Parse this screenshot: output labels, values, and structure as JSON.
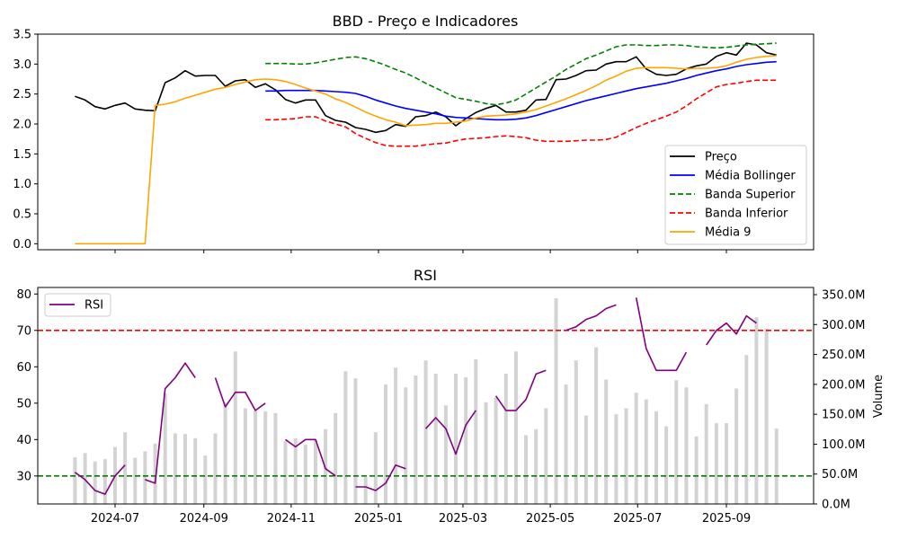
{
  "chart_data": [
    {
      "type": "line",
      "title": "BBD - Preço e Indicadores",
      "xlabel": "",
      "ylabel": "",
      "ylim": [
        -0.1,
        3.5
      ],
      "yticks": [
        "0.0",
        "0.5",
        "1.0",
        "1.5",
        "2.0",
        "2.5",
        "3.0",
        "3.5"
      ],
      "ytick_values": [
        0,
        0.5,
        1.0,
        1.5,
        2.0,
        2.5,
        3.0,
        3.5
      ],
      "x_start_date": "2024-06-03",
      "x_step_days": 7,
      "legend_position": "lower-right",
      "series": [
        {
          "name": "Preço",
          "color": "#000000",
          "style": "solid",
          "values": [
            2.46,
            2.4,
            2.29,
            2.25,
            2.31,
            2.35,
            2.25,
            2.23,
            2.22,
            2.69,
            2.77,
            2.89,
            2.8,
            2.81,
            2.81,
            2.63,
            2.72,
            2.74,
            2.61,
            2.67,
            2.57,
            2.41,
            2.35,
            2.4,
            2.4,
            2.14,
            2.06,
            2.03,
            1.94,
            1.91,
            1.86,
            1.89,
            1.99,
            1.96,
            2.12,
            2.14,
            2.2,
            2.12,
            1.97,
            2.09,
            2.19,
            2.26,
            2.31,
            2.2,
            2.2,
            2.23,
            2.4,
            2.41,
            2.74,
            2.75,
            2.81,
            2.89,
            2.9,
            3.0,
            3.04,
            3.04,
            3.12,
            2.92,
            2.83,
            2.81,
            2.83,
            2.92,
            2.97,
            3.0,
            3.13,
            3.19,
            3.15,
            3.35,
            3.32,
            3.19,
            3.15
          ]
        },
        {
          "name": "Média Bollinger",
          "color": "#0000ff",
          "style": "solid",
          "values": [
            null,
            null,
            null,
            null,
            null,
            null,
            null,
            null,
            null,
            null,
            null,
            null,
            null,
            null,
            null,
            null,
            null,
            null,
            null,
            2.55,
            2.55,
            2.56,
            2.56,
            2.56,
            2.56,
            2.55,
            2.54,
            2.53,
            2.51,
            2.46,
            2.4,
            2.35,
            2.3,
            2.26,
            2.23,
            2.2,
            2.17,
            2.13,
            2.11,
            2.1,
            2.09,
            2.08,
            2.07,
            2.07,
            2.08,
            2.1,
            2.14,
            2.19,
            2.24,
            2.29,
            2.34,
            2.39,
            2.43,
            2.47,
            2.51,
            2.55,
            2.59,
            2.62,
            2.65,
            2.68,
            2.72,
            2.76,
            2.81,
            2.85,
            2.89,
            2.92,
            2.96,
            2.99,
            3.01,
            3.03,
            3.04
          ]
        },
        {
          "name": "Banda Superior",
          "color": "#008000",
          "style": "dashed",
          "values": [
            null,
            null,
            null,
            null,
            null,
            null,
            null,
            null,
            null,
            null,
            null,
            null,
            null,
            null,
            null,
            null,
            null,
            null,
            null,
            3.01,
            3.01,
            3.01,
            3.0,
            3.0,
            3.02,
            3.05,
            3.08,
            3.11,
            3.12,
            3.09,
            3.04,
            2.98,
            2.91,
            2.85,
            2.77,
            2.68,
            2.6,
            2.52,
            2.44,
            2.41,
            2.38,
            2.34,
            2.32,
            2.35,
            2.4,
            2.5,
            2.6,
            2.7,
            2.8,
            2.91,
            3.0,
            3.09,
            3.15,
            3.22,
            3.29,
            3.32,
            3.32,
            3.31,
            3.31,
            3.32,
            3.32,
            3.31,
            3.29,
            3.28,
            3.27,
            3.28,
            3.3,
            3.32,
            3.33,
            3.34,
            3.35
          ]
        },
        {
          "name": "Banda Inferior",
          "color": "#ff0000",
          "style": "dashed",
          "values": [
            null,
            null,
            null,
            null,
            null,
            null,
            null,
            null,
            null,
            null,
            null,
            null,
            null,
            null,
            null,
            null,
            null,
            null,
            null,
            2.07,
            2.07,
            2.08,
            2.09,
            2.12,
            2.12,
            2.05,
            2.0,
            1.95,
            1.84,
            1.76,
            1.69,
            1.64,
            1.63,
            1.63,
            1.63,
            1.65,
            1.67,
            1.68,
            1.72,
            1.75,
            1.76,
            1.77,
            1.79,
            1.8,
            1.79,
            1.77,
            1.73,
            1.71,
            1.71,
            1.71,
            1.72,
            1.73,
            1.73,
            1.74,
            1.78,
            1.86,
            1.94,
            2.01,
            2.07,
            2.13,
            2.2,
            2.3,
            2.42,
            2.52,
            2.62,
            2.66,
            2.68,
            2.71,
            2.73,
            2.73,
            2.73
          ]
        },
        {
          "name": "Média 9",
          "color": "#ffa500",
          "style": "solid",
          "values": [
            0,
            0,
            0,
            0,
            0,
            0,
            0,
            0,
            2.31,
            2.33,
            2.37,
            2.43,
            2.48,
            2.53,
            2.58,
            2.61,
            2.66,
            2.7,
            2.74,
            2.75,
            2.74,
            2.71,
            2.66,
            2.6,
            2.55,
            2.5,
            2.42,
            2.36,
            2.28,
            2.2,
            2.13,
            2.07,
            2.03,
            1.97,
            1.98,
            1.99,
            2.01,
            2.01,
            2.03,
            2.05,
            2.1,
            2.13,
            2.14,
            2.15,
            2.17,
            2.2,
            2.24,
            2.3,
            2.36,
            2.42,
            2.49,
            2.56,
            2.64,
            2.73,
            2.8,
            2.88,
            2.93,
            2.94,
            2.94,
            2.94,
            2.93,
            2.92,
            2.93,
            2.93,
            2.94,
            2.97,
            3.03,
            3.08,
            3.11,
            3.13,
            3.14
          ]
        }
      ]
    },
    {
      "type": "line",
      "title": "RSI",
      "ylabel": "",
      "ylim": [
        22.3,
        81.8
      ],
      "yticks": [
        "30",
        "40",
        "50",
        "60",
        "70",
        "80"
      ],
      "ytick_values": [
        30,
        40,
        50,
        60,
        70,
        80
      ],
      "overbought": 70,
      "oversold": 30,
      "overbought_color": "#ff0000",
      "oversold_color": "#008000",
      "x_start_date": "2024-06-03",
      "x_step_days": 7,
      "xticks": [
        "2024-07",
        "2024-09",
        "2024-11",
        "2025-01",
        "2025-03",
        "2025-05",
        "2025-07",
        "2025-09"
      ],
      "xtick_dates": [
        "2024-07-01",
        "2024-09-01",
        "2024-11-01",
        "2025-01-01",
        "2025-03-01",
        "2025-05-01",
        "2025-07-01",
        "2025-09-01"
      ],
      "legend_position": "upper-left",
      "series": [
        {
          "name": "RSI",
          "color": "#800080",
          "style": "solid",
          "values": [
            31,
            29,
            26,
            25,
            30,
            33,
            null,
            29,
            28,
            54,
            57,
            61,
            57,
            null,
            57,
            49,
            53,
            53,
            48,
            50,
            null,
            40,
            38,
            40,
            40,
            32,
            30,
            null,
            27,
            27,
            26,
            28,
            33,
            32,
            null,
            43,
            46,
            43,
            36,
            44,
            48,
            null,
            52,
            48,
            48,
            51,
            58,
            59,
            null,
            70,
            71,
            73,
            74,
            76,
            77,
            null,
            79,
            65,
            59,
            59,
            59,
            64,
            null,
            66,
            70,
            72,
            69,
            74,
            72,
            null,
            null
          ]
        }
      ],
      "secondary_axis": {
        "type": "bar",
        "label": "Volume",
        "color": "#d3d3d3",
        "ylim_millions": [
          0,
          350
        ],
        "yticks": [
          "0.0M",
          "50.0M",
          "100.0M",
          "150.0M",
          "200.0M",
          "250.0M",
          "300.0M",
          "350.0M"
        ],
        "ytick_values": [
          0,
          50,
          100,
          150,
          200,
          250,
          300,
          350
        ],
        "values_millions": [
          78,
          85,
          71,
          75,
          95,
          120,
          77,
          88,
          101,
          185,
          118,
          117,
          110,
          81,
          118,
          170,
          255,
          160,
          156,
          155,
          152,
          105,
          110,
          99,
          107,
          125,
          152,
          222,
          210,
          45,
          120,
          200,
          228,
          195,
          215,
          240,
          218,
          165,
          218,
          212,
          242,
          170,
          178,
          218,
          255,
          115,
          125,
          160,
          344,
          200,
          240,
          148,
          262,
          208,
          150,
          160,
          186,
          175,
          155,
          130,
          207,
          195,
          113,
          167,
          135,
          135,
          193,
          249,
          312,
          293,
          126
        ]
      }
    }
  ]
}
